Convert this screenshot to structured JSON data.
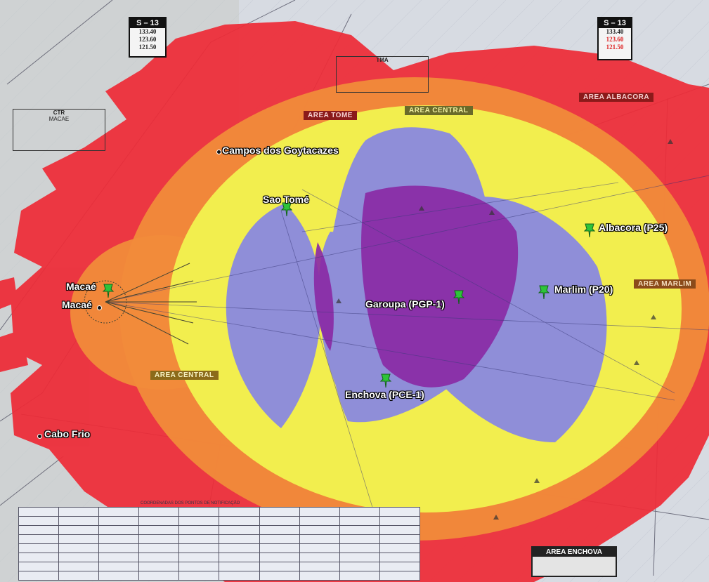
{
  "labels": {
    "campos": "Campos dos Goytacazes",
    "sao_tome": "Sao Tomé",
    "albacora": "Albacora (P25)",
    "macae_pin": "Macaé",
    "macae_city": "Macaé",
    "garoupa": "Garoupa (PGP-1)",
    "marlim": "Marlim (P20)",
    "enchova": "Enchova (PCE-1)",
    "cabo_frio": "Cabo Frio"
  },
  "sector_boxes": [
    {
      "title": "S – 13",
      "freqs": [
        "133.40",
        "123.60",
        "121.50"
      ]
    },
    {
      "title": "S – 13",
      "freqs": [
        "133.40",
        "123.60",
        "121.50"
      ]
    }
  ],
  "area_tags": {
    "tome": "AREA TOME",
    "central": "AREA CENTRAL",
    "albacora": "AREA ALBACORA",
    "marlim": "AREA MARLIM",
    "enchova": "AREA ENCHOVA"
  },
  "chart_boxes": {
    "ctr": "CTR",
    "ctr_sub": "MACAE",
    "tma": "TMA",
    "ctr_sub2": "TMA"
  },
  "table_title": "COORDENADAS DOS PONTOS DE NOTIFICAÇÃO",
  "colors": {
    "red": "#ee2b37",
    "orange": "#f18b3a",
    "yellow": "#f2ee4e",
    "lavender": "#8f8ed8",
    "purple": "#8a2aa5",
    "pin": "#2ec43a",
    "chart_bg": "#d6dbe3"
  }
}
